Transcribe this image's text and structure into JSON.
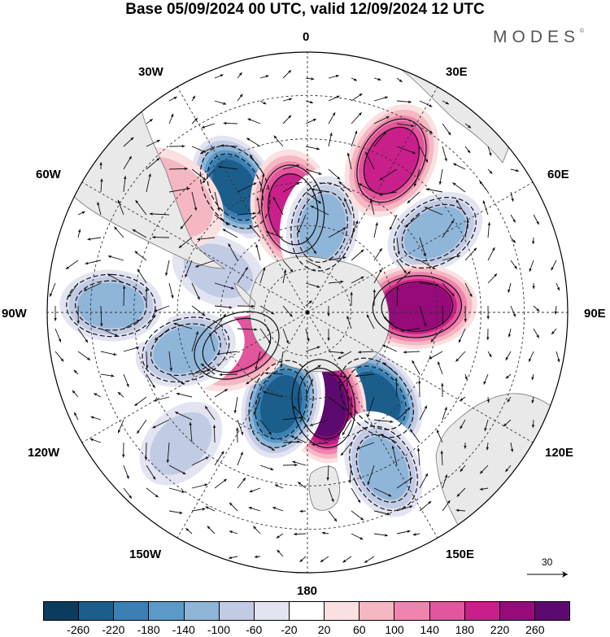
{
  "title": "Base 05/09/2024 00 UTC, valid 12/09/2024 12 UTC",
  "brand": {
    "name": "MODES",
    "mark": "©"
  },
  "longitude_labels": [
    "0",
    "30E",
    "60E",
    "90E",
    "120E",
    "150E",
    "180",
    "150W",
    "120W",
    "90W",
    "60W",
    "30W"
  ],
  "vector_key": {
    "label": "30"
  },
  "colorbar": {
    "colors": [
      "#0b3c5d",
      "#1b5e8c",
      "#3a80b5",
      "#5b9ac8",
      "#8fb6d9",
      "#c1cbe4",
      "#e3e4f1",
      "#ffffff",
      "#fbe0e1",
      "#f5b8c2",
      "#ef85ae",
      "#e3559c",
      "#c91f8b",
      "#960a7a",
      "#5c0a6f"
    ],
    "ticks": [
      "-260",
      "-220",
      "-180",
      "-140",
      "-100",
      "-60",
      "-20",
      "20",
      "60",
      "100",
      "140",
      "180",
      "220",
      "260"
    ]
  },
  "colors": {
    "land": "#e9e9e9",
    "coast": "#777777",
    "grid": "#333333",
    "vector": "#111111",
    "contour": "#111111"
  },
  "anomalies": [
    {
      "name": "blue-60w",
      "lon_deg": -30,
      "colat_deg": 50,
      "value": -240
    },
    {
      "name": "pink-0",
      "lon_deg": -8,
      "colat_deg": 36,
      "value": 190
    },
    {
      "name": "blue-10e",
      "lon_deg": 10,
      "colat_deg": 30,
      "value": -110
    },
    {
      "name": "pink-30e",
      "lon_deg": 29,
      "colat_deg": 60,
      "value": 190
    },
    {
      "name": "blue-60e",
      "lon_deg": 58,
      "colat_deg": 52,
      "value": -120
    },
    {
      "name": "pink-90e",
      "lon_deg": 87,
      "colat_deg": 38,
      "value": 220
    },
    {
      "name": "blue-140e",
      "lon_deg": 141,
      "colat_deg": 38,
      "value": -230
    },
    {
      "name": "pink-170e",
      "lon_deg": 170,
      "colat_deg": 32,
      "value": 260
    },
    {
      "name": "blue-165w",
      "lon_deg": -164,
      "colat_deg": 33,
      "value": -240
    },
    {
      "name": "pink-120w",
      "lon_deg": -115,
      "colat_deg": 27,
      "value": 170
    },
    {
      "name": "blue-100w",
      "lon_deg": -107,
      "colat_deg": 44,
      "value": -110
    },
    {
      "name": "blue-90w",
      "lon_deg": -88,
      "colat_deg": 68,
      "value": -120
    },
    {
      "name": "blue-70w",
      "lon_deg": -65,
      "colat_deg": 34,
      "value": -90
    },
    {
      "name": "blue-150e",
      "lon_deg": 154,
      "colat_deg": 60,
      "value": -130
    },
    {
      "name": "blue-150w",
      "lon_deg": -136,
      "colat_deg": 63,
      "value": -90
    },
    {
      "name": "pink-40w",
      "lon_deg": -50,
      "colat_deg": 62,
      "value": 90
    }
  ]
}
